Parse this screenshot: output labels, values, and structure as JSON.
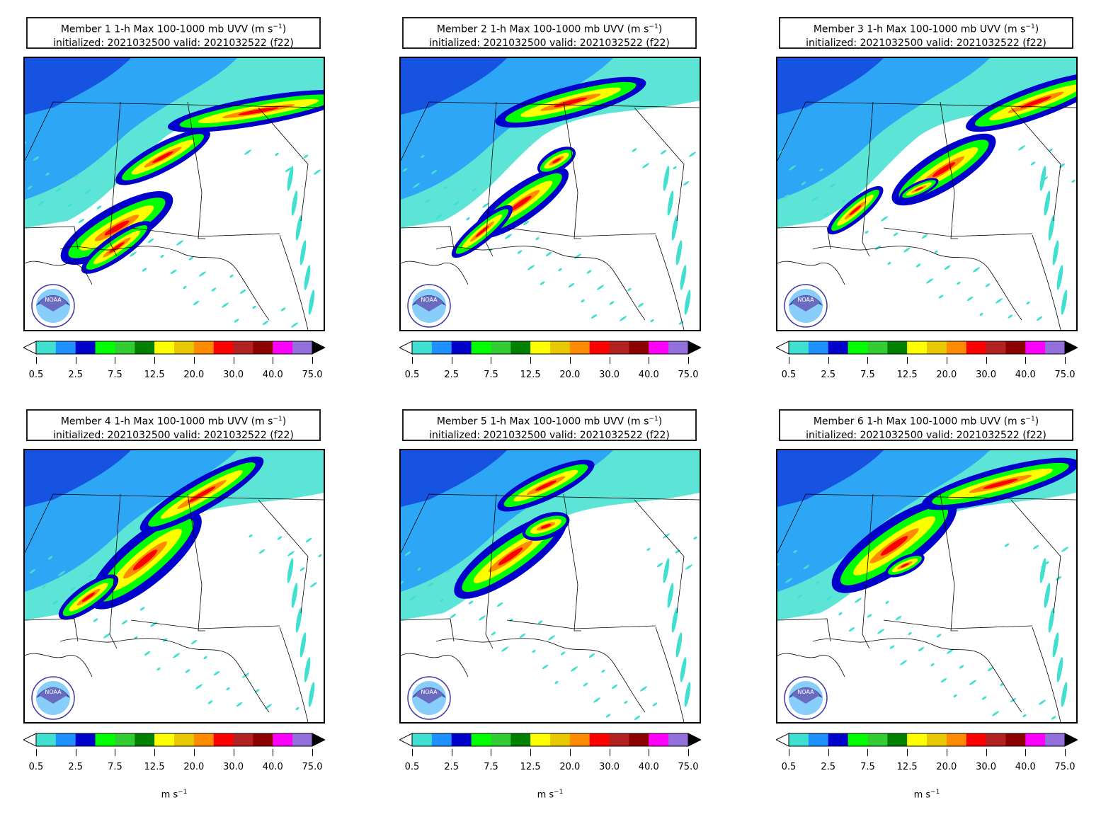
{
  "panels": [
    {
      "member_label": "Member 1 1-h Max 100-1000 mb UVV (m s",
      "unit_sup": "−1",
      "close": ")",
      "line2": "initialized: 2021032500 valid: 2021032522 (f22)"
    },
    {
      "member_label": "Member 2 1-h Max 100-1000 mb UVV (m s",
      "unit_sup": "−1",
      "close": ")",
      "line2": "initialized: 2021032500 valid: 2021032522 (f22)"
    },
    {
      "member_label": "Member 3 1-h Max 100-1000 mb UVV (m s",
      "unit_sup": "−1",
      "close": ")",
      "line2": "initialized: 2021032500 valid: 2021032522 (f22)"
    },
    {
      "member_label": "Member 4 1-h Max 100-1000 mb UVV (m s",
      "unit_sup": "−1",
      "close": ")",
      "line2": "initialized: 2021032500 valid: 2021032522 (f22)"
    },
    {
      "member_label": "Member 5 1-h Max 100-1000 mb UVV (m s",
      "unit_sup": "−1",
      "close": ")",
      "line2": "initialized: 2021032500 valid: 2021032522 (f22)"
    },
    {
      "member_label": "Member 6 1-h Max 100-1000 mb UVV (m s",
      "unit_sup": "−1",
      "close": ")",
      "line2": "initialized: 2021032500 valid: 2021032522 (f22)"
    }
  ],
  "colorbar": {
    "colors": [
      "#40e0d0",
      "#1e90ff",
      "#0000cd",
      "#00ff00",
      "#32cd32",
      "#008000",
      "#ffff00",
      "#e8c800",
      "#ff8c00",
      "#ff0000",
      "#b22222",
      "#8b0000",
      "#ff00ff",
      "#9370db"
    ],
    "under_color": "#ffffff",
    "over_color": "#000000",
    "tick_labels": [
      "0.5",
      "2.5",
      "7.5",
      "12.5",
      "20.0",
      "30.0",
      "40.0",
      "75.0"
    ],
    "units_text": "m s",
    "units_sup": "−1"
  },
  "logo_text": "NOAA"
}
